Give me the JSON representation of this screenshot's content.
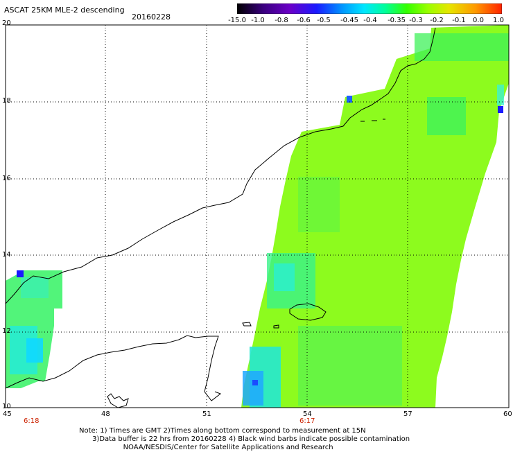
{
  "title": "ASCAT 25KM MLE-2 descending",
  "date": "20160228",
  "colorbar": {
    "labels": [
      "-15.0",
      "-1.0",
      "-0.8",
      "-0.6",
      "-0.5",
      "-0.45",
      "-0.4",
      "-0.35",
      "-0.3",
      "-0.2",
      "-0.1",
      "0.0",
      "1.0"
    ],
    "colors": [
      "#000000",
      "#3a0080",
      "#6a00c8",
      "#1a1aff",
      "#0088ff",
      "#00d8ff",
      "#00ffcc",
      "#00ff66",
      "#33ff00",
      "#99ff00",
      "#e6e600",
      "#ff9900",
      "#ff2a00"
    ]
  },
  "axes": {
    "lat_labels": [
      "20",
      "18",
      "16",
      "14",
      "12",
      "10"
    ],
    "lon_labels": [
      "45",
      "48",
      "51",
      "54",
      "57",
      "60"
    ]
  },
  "pass_times": [
    "6:18",
    "6:17"
  ],
  "note_lines": [
    "Note: 1) Times are GMT 2)Times along bottom correspond to measurement at 15N",
    "      3)Data buffer is 22 hrs from 20160228 4) Black wind barbs indicate possible contamination",
    "                    NOAA/NESDIS/Center for Satellite Applications and Research"
  ]
}
